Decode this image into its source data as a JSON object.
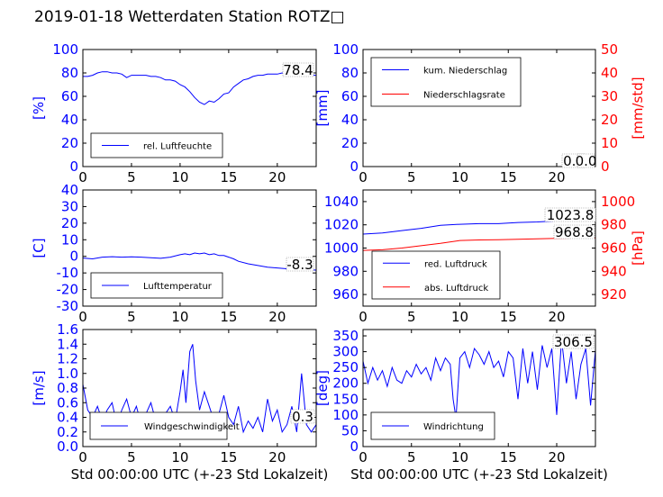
{
  "title": "2019-01-18 Wetterdaten Station ROTZ□",
  "colors": {
    "blue": "#0000ff",
    "red": "#ff0000",
    "lightblue": "#6f6fff",
    "frame": "#000000"
  },
  "chart_data": [
    {
      "type": "line",
      "id": "humidity",
      "xlim": [
        0,
        24
      ],
      "ylim": [
        0,
        100
      ],
      "xticks": [
        0,
        5,
        10,
        15,
        20
      ],
      "yticks": [
        0,
        20,
        40,
        60,
        80,
        100
      ],
      "ylabel": "[%]",
      "last_value_label": "78.4",
      "series": [
        {
          "name": "rel. Luftfeuchte",
          "color": "#0000ff",
          "x": [
            0,
            0.5,
            1,
            1.5,
            2,
            2.5,
            3,
            3.5,
            4,
            4.5,
            5,
            5.5,
            6,
            6.5,
            7,
            7.5,
            8,
            8.5,
            9,
            9.5,
            10,
            10.5,
            11,
            11.5,
            12,
            12.5,
            13,
            13.5,
            14,
            14.5,
            15,
            15.5,
            16,
            16.5,
            17,
            17.5,
            18,
            18.5,
            19,
            19.5,
            20,
            20.5,
            21,
            21.5,
            22,
            22.5,
            23,
            23.5,
            24
          ],
          "y": [
            77,
            77,
            78,
            80,
            81,
            81,
            80,
            80,
            79,
            76,
            78,
            78,
            78,
            78,
            77,
            77,
            76,
            74,
            74,
            73,
            70,
            68,
            64,
            59,
            55,
            53,
            56,
            55,
            58,
            62,
            63,
            68,
            71,
            74,
            75,
            77,
            78,
            78,
            79,
            79,
            79,
            80,
            79,
            79,
            79,
            79,
            79,
            78,
            78
          ]
        }
      ],
      "legend": "lower-left"
    },
    {
      "type": "line",
      "id": "precipitation",
      "xlim": [
        0,
        24
      ],
      "ylim": [
        0,
        100
      ],
      "y2lim": [
        0,
        50
      ],
      "xticks": [
        0,
        5,
        10,
        15,
        20
      ],
      "yticks": [
        0,
        20,
        40,
        60,
        80,
        100
      ],
      "y2ticks": [
        0,
        10,
        20,
        30,
        40,
        50
      ],
      "ylabel": "[mm]",
      "y2label": "[mm/std]",
      "last_value_label": "0.0",
      "last_value_label_2": "0.0",
      "series": [
        {
          "name": "kum. Niederschlag",
          "color": "#0000ff",
          "axis": "left",
          "x": [
            0,
            24
          ],
          "y": [
            0,
            0
          ]
        },
        {
          "name": "Niederschlagsrate",
          "color": "#ff0000",
          "axis": "right",
          "x": [
            0,
            24
          ],
          "y": [
            0,
            0
          ]
        }
      ],
      "legend": "upper-left"
    },
    {
      "type": "line",
      "id": "temperature",
      "xlim": [
        0,
        24
      ],
      "ylim": [
        -30,
        40
      ],
      "xticks": [
        0,
        5,
        10,
        15,
        20
      ],
      "yticks": [
        -30,
        -20,
        -10,
        0,
        10,
        20,
        30,
        40
      ],
      "ylabel": "[C]",
      "last_value_label": "-8.3",
      "series": [
        {
          "name": "Lufttemperatur",
          "color": "#0000ff",
          "x": [
            0,
            1,
            2,
            3,
            4,
            5,
            6,
            7,
            8,
            9,
            10,
            10.5,
            11,
            11.5,
            12,
            12.5,
            13,
            13.5,
            14,
            14.5,
            15,
            15.5,
            16,
            17,
            18,
            19,
            20,
            21,
            22,
            23,
            24
          ],
          "y": [
            -1,
            -1.5,
            -0.5,
            -0.2,
            -0.5,
            -0.3,
            -0.5,
            -0.8,
            -1.2,
            -0.5,
            1,
            1.5,
            1,
            2,
            1.5,
            2,
            1,
            1.5,
            0.5,
            0.5,
            -0.5,
            -1.5,
            -3,
            -4.5,
            -5.5,
            -6.5,
            -7,
            -7.5,
            -7.8,
            -8.1,
            -8.3
          ]
        }
      ],
      "legend": "lower-left"
    },
    {
      "type": "line",
      "id": "pressure",
      "xlim": [
        0,
        24
      ],
      "ylim": [
        950,
        1050
      ],
      "y2lim": [
        910,
        1010
      ],
      "xticks": [
        0,
        5,
        10,
        15,
        20
      ],
      "yticks": [
        960,
        980,
        1000,
        1020,
        1040
      ],
      "y2ticks": [
        920,
        940,
        960,
        980,
        1000
      ],
      "y2label": "[hPa]",
      "last_value_label": "1023.8",
      "last_value_label_2": "968.8",
      "series": [
        {
          "name": "red. Luftdruck",
          "color": "#0000ff",
          "axis": "left",
          "x": [
            0,
            2,
            4,
            6,
            8,
            10,
            12,
            14,
            16,
            18,
            20,
            22,
            24
          ],
          "y": [
            1012,
            1013,
            1015,
            1017,
            1019.5,
            1020.5,
            1021,
            1021,
            1022,
            1022.5,
            1023.3,
            1023.6,
            1023.8
          ]
        },
        {
          "name": "abs. Luftdruck",
          "color": "#ff0000",
          "axis": "right",
          "x": [
            0,
            2,
            4,
            6,
            8,
            10,
            12,
            14,
            16,
            18,
            20,
            22,
            24
          ],
          "y": [
            958,
            958.5,
            960,
            962,
            964,
            966.5,
            967,
            967.2,
            967.5,
            968,
            968.3,
            968.6,
            968.8
          ]
        }
      ],
      "legend": "lower-left"
    },
    {
      "type": "line",
      "id": "wind-speed",
      "xlim": [
        0,
        24
      ],
      "ylim": [
        0,
        1.6
      ],
      "xticks": [
        0,
        5,
        10,
        15,
        20
      ],
      "yticks": [
        0.0,
        0.2,
        0.4,
        0.6,
        0.8,
        1.0,
        1.2,
        1.4,
        1.6
      ],
      "ylabel": "[m/s]",
      "xlabel": "Std 00:00:00 UTC (+-23 Std Lokalzeit)",
      "last_value_label": "0.3",
      "series": [
        {
          "name": "Windgeschwindigkeit",
          "color": "#0000ff",
          "x": [
            0,
            0.5,
            1,
            1.5,
            2,
            2.5,
            3,
            3.5,
            4,
            4.5,
            5,
            5.5,
            6,
            6.5,
            7,
            7.5,
            8,
            8.5,
            9,
            9.5,
            10,
            10.3,
            10.6,
            11,
            11.3,
            11.6,
            12,
            12.5,
            13,
            13.5,
            14,
            14.5,
            15,
            15.5,
            16,
            16.5,
            17,
            17.5,
            18,
            18.5,
            19,
            19.5,
            20,
            20.5,
            21,
            21.5,
            22,
            22.5,
            23,
            23.5,
            24
          ],
          "y": [
            0.85,
            0.5,
            0.4,
            0.55,
            0.35,
            0.5,
            0.6,
            0.3,
            0.5,
            0.65,
            0.4,
            0.55,
            0.3,
            0.45,
            0.6,
            0.35,
            0.4,
            0.45,
            0.55,
            0.35,
            0.75,
            1.05,
            0.6,
            1.3,
            1.4,
            0.9,
            0.5,
            0.75,
            0.55,
            0.35,
            0.45,
            0.7,
            0.4,
            0.3,
            0.55,
            0.2,
            0.35,
            0.25,
            0.4,
            0.2,
            0.65,
            0.35,
            0.5,
            0.2,
            0.3,
            0.55,
            0.2,
            1.0,
            0.3,
            0.2,
            0.3
          ]
        }
      ],
      "legend": "lower-center"
    },
    {
      "type": "line",
      "id": "wind-direction",
      "xlim": [
        0,
        24
      ],
      "ylim": [
        0,
        370
      ],
      "xticks": [
        0,
        5,
        10,
        15,
        20
      ],
      "yticks": [
        0,
        50,
        100,
        150,
        200,
        250,
        300,
        350
      ],
      "ylabel": "[deg]",
      "xlabel": "Std 00:00:00 UTC (+-23 Std Lokalzeit)",
      "last_value_label": "306.5",
      "series": [
        {
          "name": "Windrichtung",
          "color": "#0000ff",
          "x": [
            0,
            0.5,
            1,
            1.5,
            2,
            2.5,
            3,
            3.5,
            4,
            4.5,
            5,
            5.5,
            6,
            6.5,
            7,
            7.5,
            8,
            8.5,
            9,
            9.3,
            9.6,
            10,
            10.5,
            11,
            11.5,
            12,
            12.5,
            13,
            13.5,
            14,
            14.5,
            15,
            15.5,
            16,
            16.5,
            17,
            17.5,
            18,
            18.5,
            19,
            19.5,
            20,
            20.5,
            21,
            21.5,
            22,
            22.5,
            23,
            23.5,
            24
          ],
          "y": [
            270,
            200,
            250,
            210,
            240,
            190,
            250,
            210,
            200,
            240,
            220,
            260,
            230,
            250,
            210,
            280,
            240,
            280,
            260,
            150,
            90,
            280,
            300,
            250,
            310,
            290,
            260,
            300,
            250,
            270,
            220,
            300,
            280,
            150,
            310,
            200,
            300,
            180,
            320,
            250,
            310,
            100,
            340,
            200,
            300,
            150,
            260,
            310,
            130,
            306
          ]
        }
      ],
      "legend": "lower-left"
    }
  ]
}
